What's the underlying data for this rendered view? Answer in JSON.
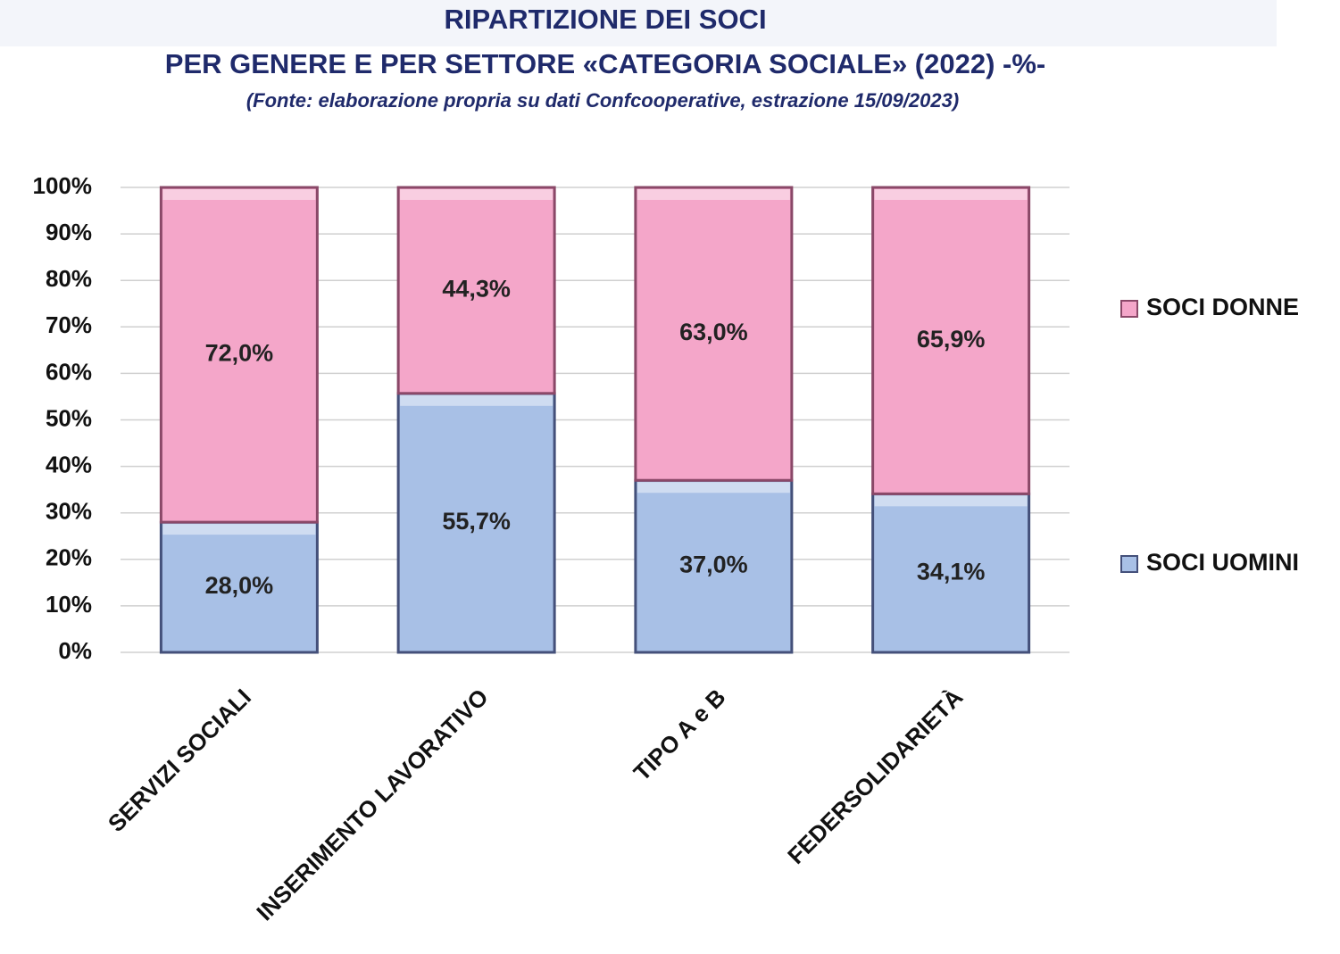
{
  "chart_data": {
    "type": "stacked_bar",
    "title": "RIPARTIZIONE DEI SOCI",
    "subtitle": "PER GENERE E PER SETTORE «CATEGORIA SOCIALE» (2022) -%-",
    "source": "(Fonte: elaborazione propria su dati Confcooperative, estrazione 15/09/2023)",
    "categories": [
      "SERVIZI SOCIALI",
      "INSERIMENTO LAVORATIVO",
      "TIPO A e B",
      "FEDERSOLIDARIETÀ"
    ],
    "series": [
      {
        "name": "SOCI UOMINI",
        "color": "#a8c0e6",
        "values": [
          28.0,
          55.7,
          37.0,
          34.1
        ],
        "value_labels": [
          "28,0%",
          "55,7%",
          "37,0%",
          "34,1%"
        ]
      },
      {
        "name": "SOCI DONNE",
        "color": "#f4a6c9",
        "values": [
          72.0,
          44.3,
          63.0,
          65.9
        ],
        "value_labels": [
          "72,0%",
          "44,3%",
          "63,0%",
          "65,9%"
        ]
      }
    ],
    "ylim": [
      0,
      100
    ],
    "yticks": [
      {
        "value": 0,
        "label": "0%"
      },
      {
        "value": 10,
        "label": "10%"
      },
      {
        "value": 20,
        "label": "20%"
      },
      {
        "value": 30,
        "label": "30%"
      },
      {
        "value": 40,
        "label": "40%"
      },
      {
        "value": 50,
        "label": "50%"
      },
      {
        "value": 60,
        "label": "60%"
      },
      {
        "value": 70,
        "label": "70%"
      },
      {
        "value": 80,
        "label": "80%"
      },
      {
        "value": 90,
        "label": "90%"
      },
      {
        "value": 100,
        "label": "100%"
      }
    ],
    "grid": true,
    "legend": "right"
  }
}
